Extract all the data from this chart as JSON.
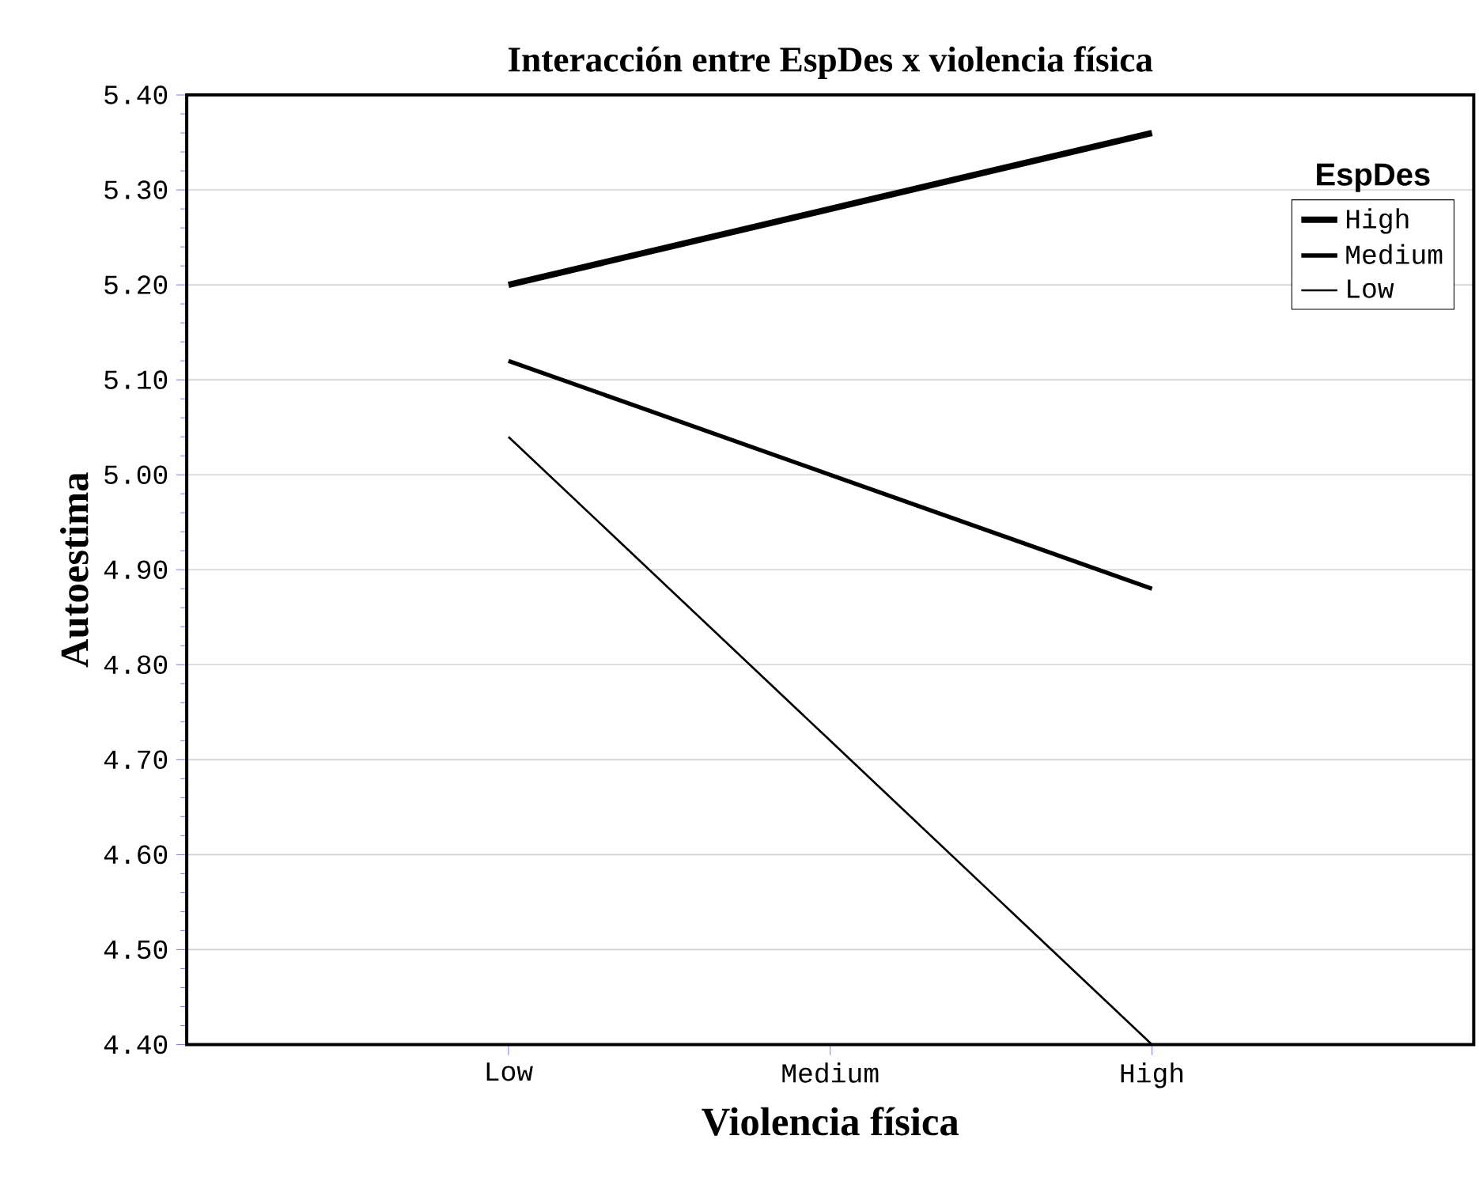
{
  "chart_data": {
    "type": "line",
    "title": "Interacción entre EspDes x violencia física",
    "xlabel": "Violencia física",
    "ylabel": "Autoestima",
    "legend_title": "EspDes",
    "categories": [
      "Low",
      "Medium",
      "High"
    ],
    "series": [
      {
        "name": "High",
        "color": "#000000",
        "values": [
          5.2,
          5.28,
          5.36
        ]
      },
      {
        "name": "Medium",
        "color": "#000000",
        "values": [
          5.12,
          5.0,
          4.88
        ]
      },
      {
        "name": "Low",
        "color": "#000000",
        "values": [
          5.04,
          4.72,
          4.4
        ]
      }
    ],
    "ylim": [
      4.4,
      5.4
    ],
    "yticks": [
      {
        "value": 4.4,
        "label": "4.40"
      },
      {
        "value": 4.5,
        "label": "4.50"
      },
      {
        "value": 4.6,
        "label": "4.60"
      },
      {
        "value": 4.7,
        "label": "4.70"
      },
      {
        "value": 4.8,
        "label": "4.80"
      },
      {
        "value": 4.9,
        "label": "4.90"
      },
      {
        "value": 5.0,
        "label": "5.00"
      },
      {
        "value": 5.1,
        "label": "5.10"
      },
      {
        "value": 5.2,
        "label": "5.20"
      },
      {
        "value": 5.3,
        "label": "5.30"
      },
      {
        "value": 5.4,
        "label": "5.40"
      }
    ],
    "grid": "y",
    "legend": "top right",
    "line_style": "solid",
    "marker": "none"
  }
}
